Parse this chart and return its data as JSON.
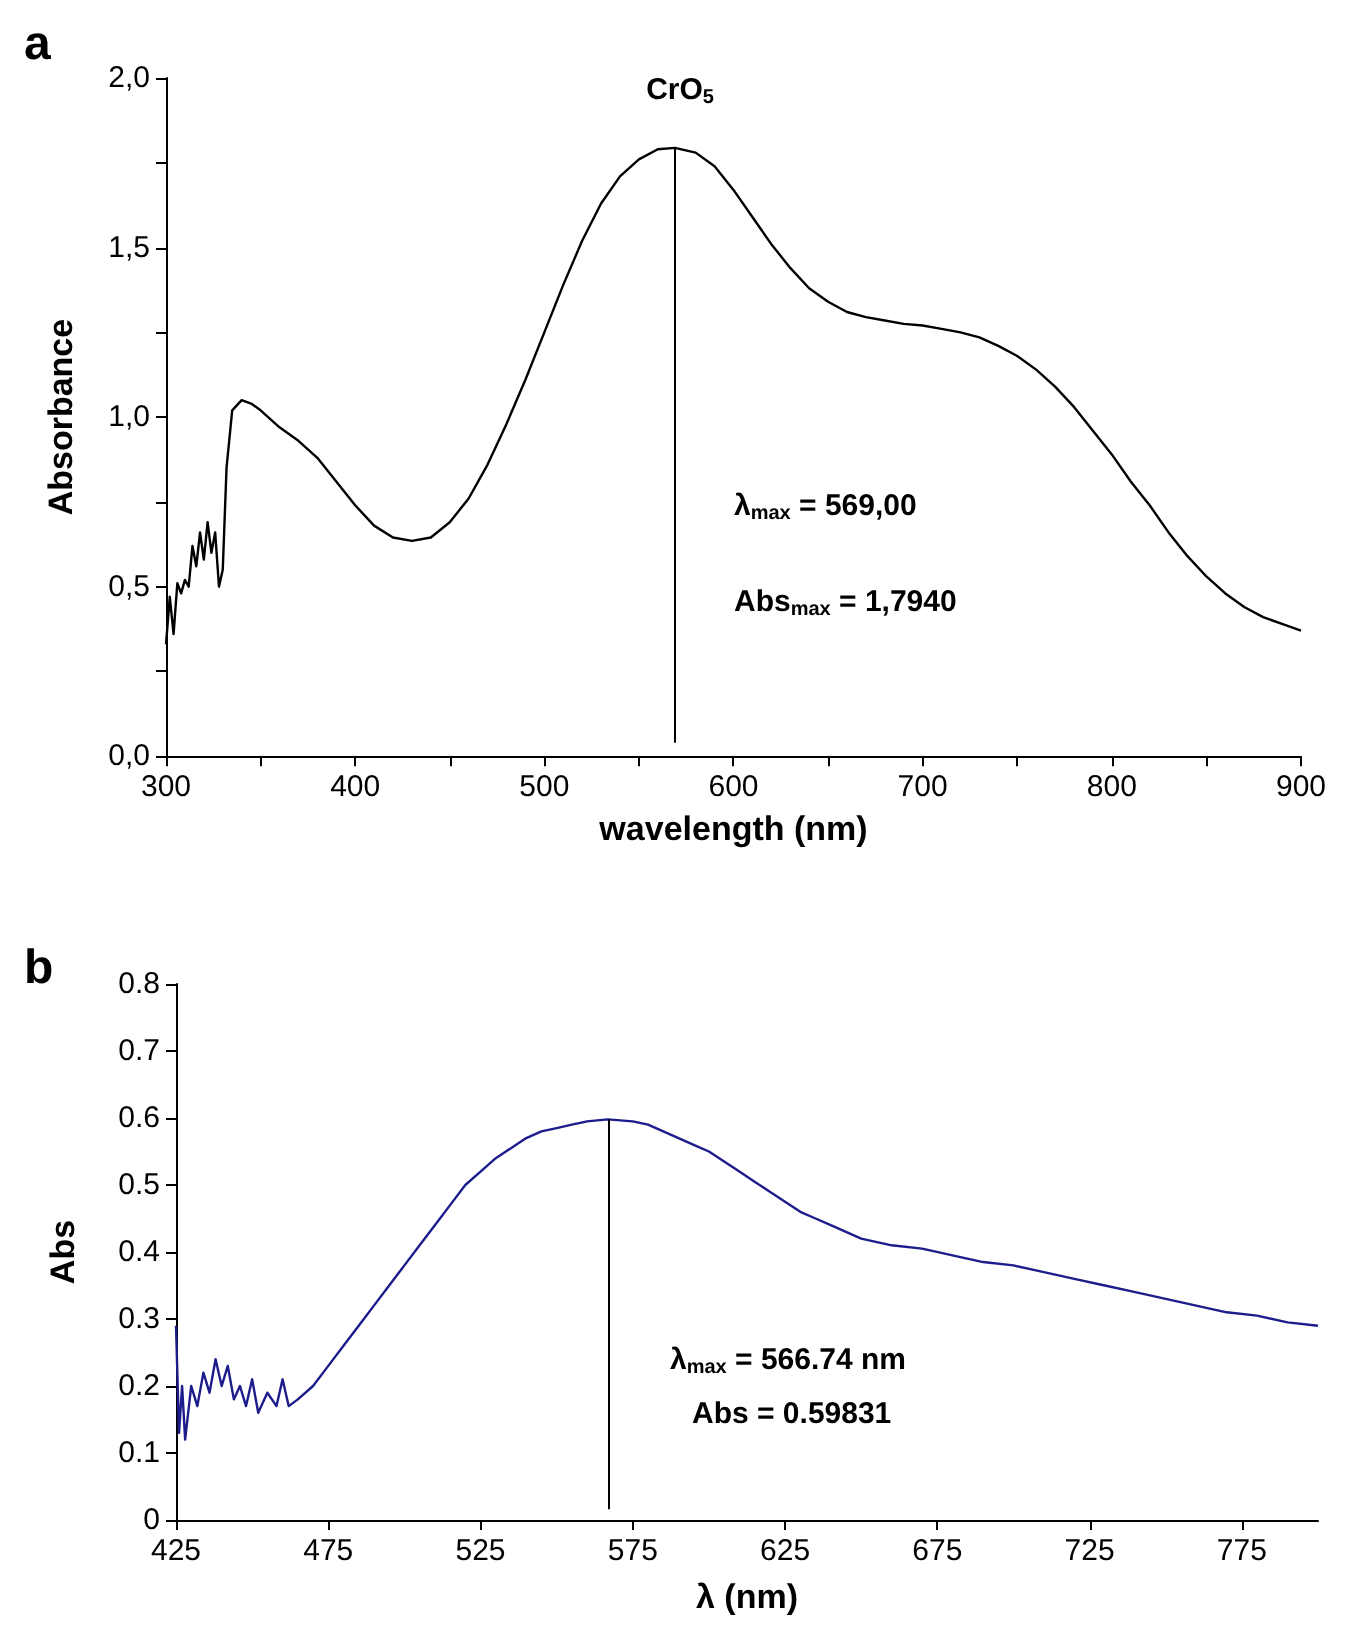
{
  "chart_data": [
    {
      "type": "line",
      "xlabel": "wavelength (nm)",
      "ylabel": "Absorbance",
      "xlim": [
        300,
        900
      ],
      "ylim": [
        0,
        2
      ],
      "xticks": [
        300,
        {
          "value": 350,
          "label": null
        },
        400,
        {
          "value": 450,
          "label": null
        },
        500,
        {
          "value": 550,
          "label": null
        },
        600,
        {
          "value": 650,
          "label": null
        },
        700,
        {
          "value": 750,
          "label": null
        },
        800,
        {
          "value": 850,
          "label": null
        },
        900
      ],
      "yticks": [
        {
          "value": 0,
          "label": "0,0"
        },
        {
          "value": 0.25,
          "label": null
        },
        {
          "value": 0.5,
          "label": "0,5"
        },
        {
          "value": 0.75,
          "label": null
        },
        {
          "value": 1,
          "label": "1,0"
        },
        {
          "value": 1.25,
          "label": null
        },
        {
          "value": 1.5,
          "label": "1,5"
        },
        {
          "value": 1.75,
          "label": null
        },
        {
          "value": 2,
          "label": "2,0"
        }
      ],
      "series": [
        {
          "color": "#000000",
          "x": [
            300,
            302,
            304,
            306,
            308,
            310,
            312,
            314,
            316,
            318,
            320,
            322,
            324,
            326,
            328,
            330,
            332,
            335,
            340,
            345,
            350,
            360,
            370,
            380,
            390,
            400,
            410,
            420,
            430,
            440,
            450,
            460,
            470,
            480,
            490,
            500,
            510,
            520,
            530,
            540,
            550,
            560,
            569,
            580,
            590,
            600,
            610,
            620,
            630,
            640,
            650,
            660,
            670,
            680,
            690,
            700,
            710,
            720,
            730,
            740,
            750,
            760,
            770,
            780,
            790,
            800,
            810,
            820,
            830,
            840,
            850,
            860,
            870,
            880,
            890,
            900
          ],
          "values": [
            0.33,
            0.47,
            0.36,
            0.51,
            0.48,
            0.52,
            0.5,
            0.62,
            0.56,
            0.66,
            0.58,
            0.69,
            0.6,
            0.66,
            0.5,
            0.55,
            0.85,
            1.02,
            1.05,
            1.04,
            1.02,
            0.97,
            0.93,
            0.88,
            0.81,
            0.74,
            0.68,
            0.645,
            0.635,
            0.645,
            0.69,
            0.76,
            0.86,
            0.98,
            1.11,
            1.25,
            1.39,
            1.52,
            1.63,
            1.71,
            1.76,
            1.79,
            1.794,
            1.78,
            1.74,
            1.67,
            1.59,
            1.51,
            1.44,
            1.38,
            1.34,
            1.31,
            1.295,
            1.285,
            1.275,
            1.27,
            1.26,
            1.25,
            1.235,
            1.21,
            1.18,
            1.14,
            1.09,
            1.03,
            0.96,
            0.89,
            0.81,
            0.74,
            0.66,
            0.59,
            0.53,
            0.48,
            0.44,
            0.41,
            0.39,
            0.37
          ]
        }
      ],
      "ref_lines": [
        {
          "axis": "x",
          "value": 569,
          "color": "#000000"
        }
      ],
      "annotations": [
        "a",
        "CrO$_{5}$",
        "λ$_{max}$ = 569,00",
        "Abs$_{max}$ = 1,7940"
      ]
    },
    {
      "type": "line",
      "xlabel": "λ (nm)",
      "ylabel": "Abs",
      "xlim": [
        425,
        800
      ],
      "ylim": [
        0,
        0.8
      ],
      "xticks": [
        425,
        475,
        525,
        575,
        625,
        675,
        725,
        775
      ],
      "yticks": [
        0,
        0.1,
        0.2,
        0.3,
        0.4,
        0.5,
        0.6,
        0.7,
        0.8
      ],
      "series": [
        {
          "color": "#1c1c8c",
          "x": [
            425,
            426,
            427,
            428,
            430,
            432,
            434,
            436,
            438,
            440,
            442,
            444,
            446,
            448,
            450,
            452,
            455,
            458,
            460,
            462,
            465,
            470,
            475,
            480,
            485,
            490,
            495,
            500,
            505,
            510,
            515,
            520,
            525,
            530,
            535,
            540,
            545,
            550,
            555,
            560,
            566.74,
            575,
            580,
            585,
            590,
            595,
            600,
            605,
            610,
            615,
            620,
            625,
            630,
            635,
            640,
            645,
            650,
            660,
            670,
            680,
            690,
            700,
            710,
            720,
            730,
            740,
            750,
            760,
            770,
            780,
            790,
            800
          ],
          "values": [
            0.29,
            0.13,
            0.2,
            0.12,
            0.2,
            0.17,
            0.22,
            0.19,
            0.24,
            0.2,
            0.23,
            0.18,
            0.2,
            0.17,
            0.21,
            0.16,
            0.19,
            0.17,
            0.21,
            0.17,
            0.18,
            0.2,
            0.23,
            0.26,
            0.29,
            0.32,
            0.35,
            0.38,
            0.41,
            0.44,
            0.47,
            0.5,
            0.52,
            0.54,
            0.555,
            0.57,
            0.58,
            0.585,
            0.59,
            0.595,
            0.598,
            0.595,
            0.59,
            0.58,
            0.57,
            0.56,
            0.55,
            0.535,
            0.52,
            0.505,
            0.49,
            0.475,
            0.46,
            0.45,
            0.44,
            0.43,
            0.42,
            0.41,
            0.405,
            0.395,
            0.385,
            0.38,
            0.37,
            0.36,
            0.35,
            0.34,
            0.33,
            0.32,
            0.31,
            0.305,
            0.295,
            0.29
          ]
        }
      ],
      "ref_lines": [
        {
          "axis": "x",
          "value": 566.74,
          "color": "#000000"
        }
      ],
      "annotations": [
        "b",
        "λ$_{max}$ = 566.74 nm",
        "Abs = 0.59831"
      ]
    }
  ]
}
